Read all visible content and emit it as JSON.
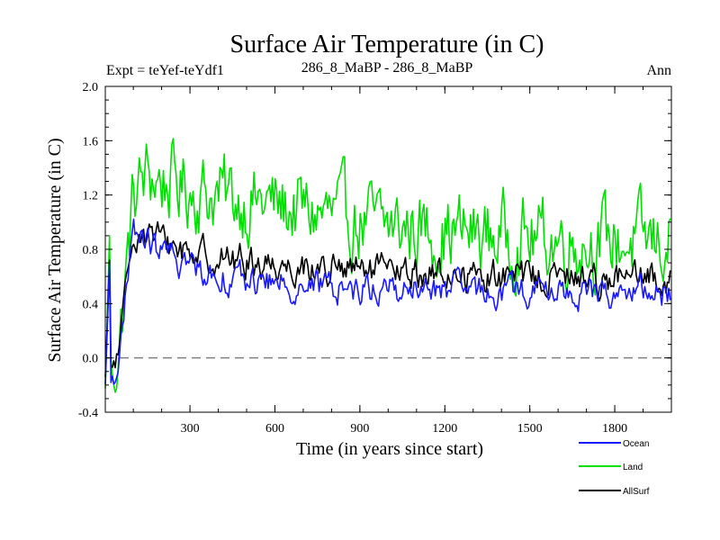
{
  "chart_data": {
    "type": "line",
    "title": "Surface Air Temperature (in C)",
    "subtitle_left": "Expt = teYef-teYdf1",
    "subtitle_center": "286_8_MaBP - 286_8_MaBP",
    "subtitle_right": "Ann",
    "xlabel": "Time (in years since start)",
    "ylabel": "Surface Air Temperature (in C)",
    "xlim": [
      1,
      2000
    ],
    "ylim": [
      -0.4,
      2.0
    ],
    "x_ticks": [
      300,
      600,
      900,
      1200,
      1500,
      1800
    ],
    "x_tick_labels": [
      "300",
      "600",
      "900",
      "1200",
      "1500",
      "1800"
    ],
    "y_ticks": [
      -0.4,
      0.0,
      0.4,
      0.8,
      1.2,
      1.6,
      2.0
    ],
    "y_tick_labels": [
      "-0.4",
      "0.0",
      "0.4",
      "0.8",
      "1.2",
      "1.6",
      "2.0"
    ],
    "reference_line": {
      "y": 0.0,
      "style": "dashed",
      "color": "#808080"
    },
    "sample_step": 5,
    "series": [
      {
        "name": "Land",
        "color": "#00e000",
        "values": [
          -0.3,
          0.1,
          1.2,
          1.35,
          1.3,
          1.28,
          1.25,
          1.22,
          1.2,
          1.18,
          1.16,
          1.14,
          1.12,
          1.1,
          1.08,
          1.06,
          1.04,
          1.02,
          1.0,
          0.98,
          0.97,
          0.96,
          0.95,
          0.94,
          0.93,
          0.92,
          0.91,
          0.9,
          0.9,
          0.89,
          0.88,
          0.88,
          0.87,
          0.87,
          0.86,
          0.86,
          0.86,
          0.85,
          0.85,
          0.85,
          0.85
        ],
        "noise_amplitude": 0.24
      },
      {
        "name": "AllSurf",
        "color": "#000000",
        "values": [
          -0.2,
          0.05,
          0.95,
          0.92,
          0.86,
          0.82,
          0.79,
          0.76,
          0.74,
          0.72,
          0.71,
          0.7,
          0.69,
          0.68,
          0.67,
          0.66,
          0.65,
          0.64,
          0.64,
          0.63,
          0.63,
          0.62,
          0.62,
          0.62,
          0.61,
          0.61,
          0.61,
          0.6,
          0.6,
          0.6,
          0.6,
          0.6,
          0.59,
          0.59,
          0.59,
          0.59,
          0.59,
          0.58,
          0.58,
          0.58,
          0.58
        ],
        "noise_amplitude": 0.1
      },
      {
        "name": "Ocean",
        "color": "#1a1aff",
        "values": [
          -0.25,
          0.0,
          0.92,
          0.86,
          0.78,
          0.72,
          0.68,
          0.64,
          0.61,
          0.59,
          0.57,
          0.56,
          0.55,
          0.54,
          0.53,
          0.53,
          0.52,
          0.52,
          0.51,
          0.51,
          0.51,
          0.5,
          0.5,
          0.5,
          0.5,
          0.5,
          0.49,
          0.49,
          0.49,
          0.49,
          0.49,
          0.49,
          0.49,
          0.48,
          0.48,
          0.48,
          0.48,
          0.48,
          0.48,
          0.48,
          0.48
        ],
        "noise_amplitude": 0.09
      }
    ],
    "legend": {
      "placement": "bottom-right",
      "entries": [
        {
          "label": "Ocean",
          "color": "#1a1aff"
        },
        {
          "label": "Land",
          "color": "#00e000"
        },
        {
          "label": "AllSurf",
          "color": "#000000"
        }
      ]
    }
  }
}
